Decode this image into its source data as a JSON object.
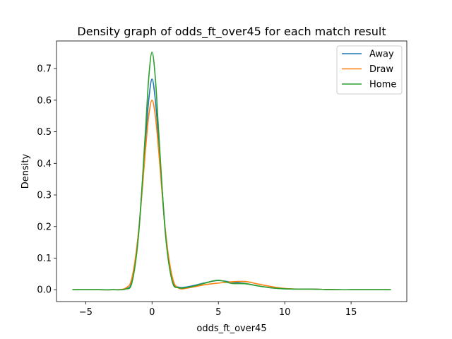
{
  "chart_data": {
    "type": "line",
    "title": "Density graph of odds_ft_over45 for each match result",
    "xlabel": "odds_ft_over45",
    "ylabel": "Density",
    "xlim": [
      -7.2,
      19.2
    ],
    "ylim": [
      -0.0375,
      0.7875
    ],
    "xticks": [
      -5,
      0,
      5,
      10,
      15
    ],
    "yticks": [
      0.0,
      0.1,
      0.2,
      0.3,
      0.4,
      0.5,
      0.6,
      0.7
    ],
    "xtick_labels": [
      "−5",
      "0",
      "5",
      "10",
      "15"
    ],
    "ytick_labels": [
      "0.0",
      "0.1",
      "0.2",
      "0.3",
      "0.4",
      "0.5",
      "0.6",
      "0.7"
    ],
    "legend_position": "top-right",
    "grid": false,
    "series": [
      {
        "name": "Away",
        "color": "#1f77b4",
        "x": [
          -6,
          -4,
          -3,
          -2,
          -1.5,
          -1,
          -0.5,
          -0.25,
          0,
          0.25,
          0.5,
          1,
          1.5,
          2,
          3,
          4,
          5,
          6,
          7,
          8,
          9,
          10,
          11,
          12,
          13,
          14,
          15,
          16,
          17,
          18
        ],
        "y": [
          0,
          0,
          0,
          0.003,
          0.03,
          0.19,
          0.47,
          0.6,
          0.667,
          0.6,
          0.47,
          0.19,
          0.035,
          0.008,
          0.012,
          0.022,
          0.029,
          0.024,
          0.02,
          0.012,
          0.006,
          0.003,
          0.002,
          0.002,
          0.001,
          0,
          0,
          0,
          0,
          0
        ]
      },
      {
        "name": "Draw",
        "color": "#ff7f0e",
        "x": [
          -6,
          -4,
          -3,
          -2,
          -1.5,
          -1,
          -0.5,
          -0.25,
          0,
          0.25,
          0.5,
          1,
          1.5,
          2,
          3,
          4,
          5,
          6,
          7,
          8,
          9,
          10,
          11,
          12,
          13,
          14,
          15,
          16,
          17,
          18
        ],
        "y": [
          0,
          0,
          0,
          0.005,
          0.04,
          0.19,
          0.44,
          0.55,
          0.6,
          0.55,
          0.44,
          0.19,
          0.045,
          0.005,
          0.008,
          0.016,
          0.021,
          0.025,
          0.026,
          0.018,
          0.01,
          0.004,
          0.002,
          0.002,
          0.001,
          0,
          0,
          0,
          0,
          0
        ]
      },
      {
        "name": "Home",
        "color": "#2ca02c",
        "x": [
          -6,
          -4,
          -3,
          -2,
          -1.5,
          -1,
          -0.5,
          -0.25,
          0,
          0.25,
          0.5,
          1,
          1.5,
          2,
          3,
          4,
          5,
          6,
          7,
          8,
          9,
          10,
          11,
          12,
          13,
          14,
          15,
          16,
          17,
          18
        ],
        "y": [
          0,
          0,
          0,
          0.002,
          0.025,
          0.18,
          0.5,
          0.67,
          0.752,
          0.67,
          0.5,
          0.18,
          0.03,
          0.006,
          0.01,
          0.021,
          0.03,
          0.02,
          0.019,
          0.012,
          0.006,
          0.003,
          0.002,
          0.002,
          0.001,
          0,
          0,
          0,
          0,
          0
        ]
      }
    ]
  }
}
